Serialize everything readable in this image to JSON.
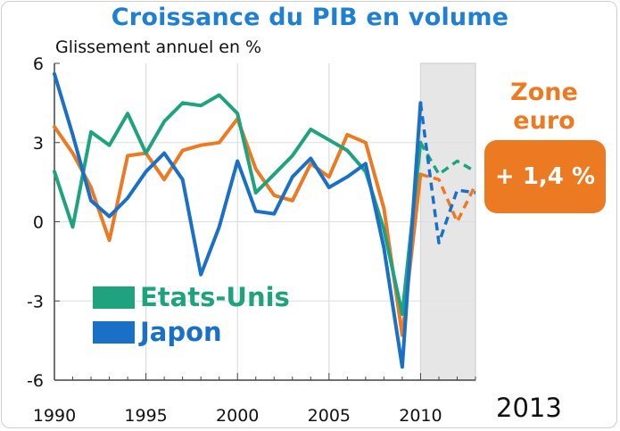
{
  "chart_data": {
    "type": "line",
    "title": "Croissance du PIB en volume",
    "subtitle": "Glissement annuel en %",
    "ylim": [
      -6,
      6
    ],
    "yticks": [
      6,
      3,
      0,
      -3,
      -6
    ],
    "xlim": [
      1990,
      2013
    ],
    "xticks": [
      1990,
      1995,
      2000,
      2005,
      2010
    ],
    "end_label": "2013",
    "forecast_start": 2010.0,
    "legend": {
      "placement": "bottom-left",
      "items": [
        {
          "name": "Etats-Unis",
          "color": "#1fa37f"
        },
        {
          "name": "Japon",
          "color": "#1a6fc7"
        }
      ]
    },
    "annotation": {
      "label": "Zone euro",
      "label_line1": "Zone",
      "label_line2": "euro",
      "value": "+ 1,4 %",
      "color": "#ec7a23"
    },
    "series": [
      {
        "name": "Etats-Unis",
        "color": "#1fa37f",
        "x": [
          1990,
          1991,
          1992,
          1993,
          1994,
          1995,
          1996,
          1997,
          1998,
          1999,
          2000,
          2001,
          2002,
          2003,
          2004,
          2005,
          2006,
          2007,
          2008,
          2009,
          2010
        ],
        "values": [
          1.9,
          -0.2,
          3.4,
          2.9,
          4.1,
          2.6,
          3.8,
          4.5,
          4.4,
          4.8,
          4.1,
          1.1,
          1.8,
          2.5,
          3.5,
          3.1,
          2.7,
          1.9,
          -0.3,
          -3.5,
          3.0
        ],
        "forecast_x": [
          2010,
          2011,
          2012,
          2013
        ],
        "forecast": [
          3.0,
          1.8,
          2.3,
          1.9
        ]
      },
      {
        "name": "Japon",
        "color": "#1a6fc7",
        "x": [
          1990,
          1991,
          1992,
          1993,
          1994,
          1995,
          1996,
          1997,
          1998,
          1999,
          2000,
          2001,
          2002,
          2003,
          2004,
          2005,
          2006,
          2007,
          2008,
          2009,
          2010
        ],
        "values": [
          5.6,
          3.3,
          0.8,
          0.2,
          0.9,
          1.9,
          2.6,
          1.6,
          -2.0,
          -0.2,
          2.3,
          0.4,
          0.3,
          1.7,
          2.4,
          1.3,
          1.7,
          2.2,
          -1.0,
          -5.5,
          4.5
        ],
        "forecast_x": [
          2010,
          2011,
          2012,
          2013
        ],
        "forecast": [
          4.5,
          -0.8,
          1.2,
          1.1
        ]
      },
      {
        "name": "Zone euro",
        "color": "#ec7a23",
        "x": [
          1990,
          1991,
          1992,
          1993,
          1994,
          1995,
          1996,
          1997,
          1998,
          1999,
          2000,
          2001,
          2002,
          2003,
          2004,
          2005,
          2006,
          2007,
          2008,
          2009,
          2010
        ],
        "values": [
          3.6,
          2.6,
          1.3,
          -0.7,
          2.5,
          2.6,
          1.6,
          2.7,
          2.9,
          3.0,
          3.9,
          2.0,
          1.0,
          0.8,
          2.2,
          1.7,
          3.3,
          3.0,
          0.5,
          -4.3,
          1.8
        ],
        "forecast_x": [
          2010,
          2011,
          2012,
          2013
        ],
        "forecast": [
          1.8,
          1.6,
          0.0,
          1.4
        ]
      }
    ]
  }
}
